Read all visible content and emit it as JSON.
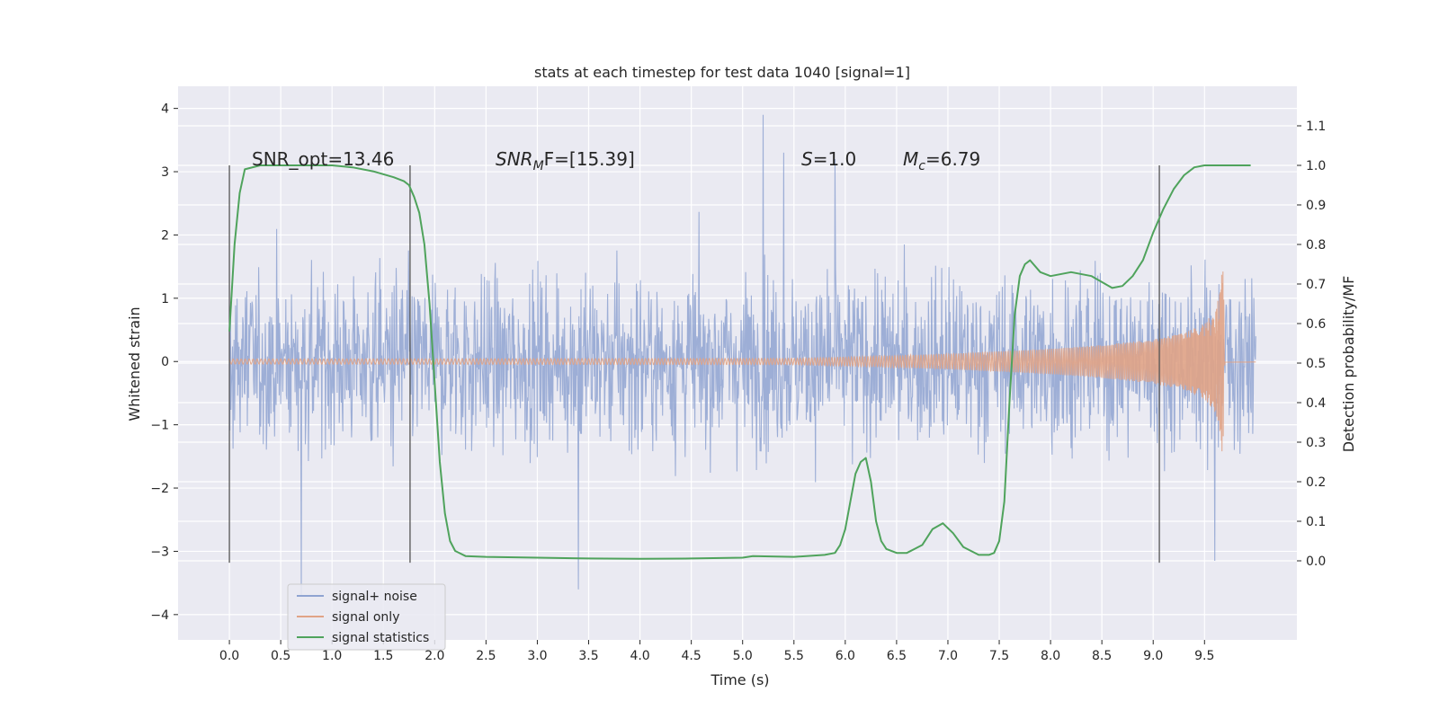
{
  "chart_data": {
    "type": "line",
    "title": "stats at each timestep for test data 1040 [signal=1]",
    "xlabel": "Time (s)",
    "ylabel": "Whitened strain",
    "y2label": "Detection probability/MF",
    "xlim": [
      -0.5,
      10.4
    ],
    "ylim": [
      -4.4,
      4.35
    ],
    "y2lim": [
      -0.2,
      1.2
    ],
    "x_ticks": [
      0.0,
      0.5,
      1.0,
      1.5,
      2.0,
      2.5,
      3.0,
      3.5,
      4.0,
      4.5,
      5.0,
      5.5,
      6.0,
      6.5,
      7.0,
      7.5,
      8.0,
      8.5,
      9.0,
      9.5
    ],
    "y_ticks": [
      -4,
      -3,
      -2,
      -1,
      0,
      1,
      2,
      3,
      4
    ],
    "y2_ticks": [
      0.0,
      0.1,
      0.2,
      0.3,
      0.4,
      0.5,
      0.6,
      0.7,
      0.8,
      0.9,
      1.0,
      1.1
    ],
    "tick_labels": {
      "x": [
        "0.0",
        "0.5",
        "1.0",
        "1.5",
        "2.0",
        "2.5",
        "3.0",
        "3.5",
        "4.0",
        "4.5",
        "5.0",
        "5.5",
        "6.0",
        "6.5",
        "7.0",
        "7.5",
        "8.0",
        "8.5",
        "9.0",
        "9.5"
      ],
      "y": [
        "−4",
        "−3",
        "−2",
        "−1",
        "0",
        "1",
        "2",
        "3",
        "4"
      ],
      "y2": [
        "0.0",
        "0.1",
        "0.2",
        "0.3",
        "0.4",
        "0.5",
        "0.6",
        "0.7",
        "0.8",
        "0.9",
        "1.0",
        "1.1"
      ]
    },
    "grid": true,
    "background": "#eaeaf2",
    "legend": {
      "position": "lower-left",
      "entries": [
        {
          "label": "signal+ noise",
          "color": "#8fa3d1"
        },
        {
          "label": "signal only",
          "color": "#e0a386"
        },
        {
          "label": "signal statistics",
          "color": "#4fa35c"
        }
      ]
    },
    "annotations": {
      "snr_opt": "SNR_opt=13.46",
      "snr_mf_sym": "SNR",
      "snr_mf_sub": "M",
      "snr_mf_rest": "F=[15.39]",
      "s_sym": "S",
      "s_rest": "=1.0",
      "mc_sym": "M",
      "mc_sub": "c",
      "mc_rest": "=6.79"
    },
    "vertical_lines_x": [
      0.0,
      1.76,
      9.06
    ],
    "series": [
      {
        "name": "signal+ noise",
        "color": "#8fa3d1",
        "x_range": [
          0.0,
          10.0
        ],
        "typical_range": [
          -1.3,
          1.2
        ],
        "spike_extremes": [
          {
            "x": 0.7,
            "y": -3.7
          },
          {
            "x": 3.4,
            "y": -3.6
          },
          {
            "x": 5.2,
            "y": 3.95
          },
          {
            "x": 5.4,
            "y": 3.3
          },
          {
            "x": 5.9,
            "y": 3.2
          },
          {
            "x": 9.6,
            "y": -3.15
          }
        ]
      },
      {
        "name": "signal only",
        "color": "#e0a386",
        "amplitude": [
          {
            "x": 0.0,
            "y": 0.04
          },
          {
            "x": 5.5,
            "y": 0.05
          },
          {
            "x": 6.0,
            "y": 0.07
          },
          {
            "x": 7.0,
            "y": 0.12
          },
          {
            "x": 8.0,
            "y": 0.2
          },
          {
            "x": 8.5,
            "y": 0.26
          },
          {
            "x": 9.0,
            "y": 0.35
          },
          {
            "x": 9.3,
            "y": 0.45
          },
          {
            "x": 9.5,
            "y": 0.6
          },
          {
            "x": 9.6,
            "y": 0.8
          },
          {
            "x": 9.65,
            "y": 1.1
          },
          {
            "x": 9.68,
            "y": 1.6
          },
          {
            "x": 9.7,
            "y": 0.04
          },
          {
            "x": 10.0,
            "y": 0.03
          }
        ]
      },
      {
        "name": "signal statistics",
        "color": "#4fa35c",
        "axis": "right",
        "x": [
          0.0,
          0.05,
          0.1,
          0.15,
          0.3,
          0.6,
          1.0,
          1.2,
          1.4,
          1.6,
          1.7,
          1.75,
          1.8,
          1.85,
          1.9,
          1.95,
          2.0,
          2.05,
          2.1,
          2.15,
          2.2,
          2.3,
          2.5,
          3.0,
          3.5,
          4.0,
          4.5,
          5.0,
          5.1,
          5.5,
          5.8,
          5.9,
          5.95,
          6.0,
          6.05,
          6.1,
          6.15,
          6.2,
          6.25,
          6.3,
          6.35,
          6.4,
          6.5,
          6.6,
          6.75,
          6.85,
          6.95,
          7.05,
          7.15,
          7.3,
          7.4,
          7.45,
          7.5,
          7.55,
          7.6,
          7.65,
          7.7,
          7.75,
          7.8,
          7.9,
          8.0,
          8.2,
          8.4,
          8.6,
          8.7,
          8.8,
          8.9,
          9.0,
          9.1,
          9.2,
          9.3,
          9.4,
          9.5,
          9.6,
          9.7,
          9.8,
          9.95
        ],
        "y": [
          0.58,
          0.8,
          0.93,
          0.99,
          1.0,
          1.0,
          1.0,
          0.995,
          0.985,
          0.97,
          0.96,
          0.95,
          0.92,
          0.88,
          0.8,
          0.65,
          0.45,
          0.25,
          0.12,
          0.05,
          0.025,
          0.012,
          0.01,
          0.008,
          0.006,
          0.005,
          0.006,
          0.008,
          0.012,
          0.01,
          0.015,
          0.02,
          0.04,
          0.08,
          0.15,
          0.22,
          0.25,
          0.26,
          0.2,
          0.1,
          0.05,
          0.03,
          0.02,
          0.02,
          0.04,
          0.08,
          0.095,
          0.07,
          0.035,
          0.015,
          0.015,
          0.02,
          0.05,
          0.15,
          0.4,
          0.62,
          0.72,
          0.75,
          0.76,
          0.73,
          0.72,
          0.73,
          0.72,
          0.69,
          0.695,
          0.72,
          0.76,
          0.83,
          0.89,
          0.94,
          0.975,
          0.995,
          1.0,
          1.0,
          1.0,
          1.0,
          1.0
        ]
      }
    ]
  }
}
